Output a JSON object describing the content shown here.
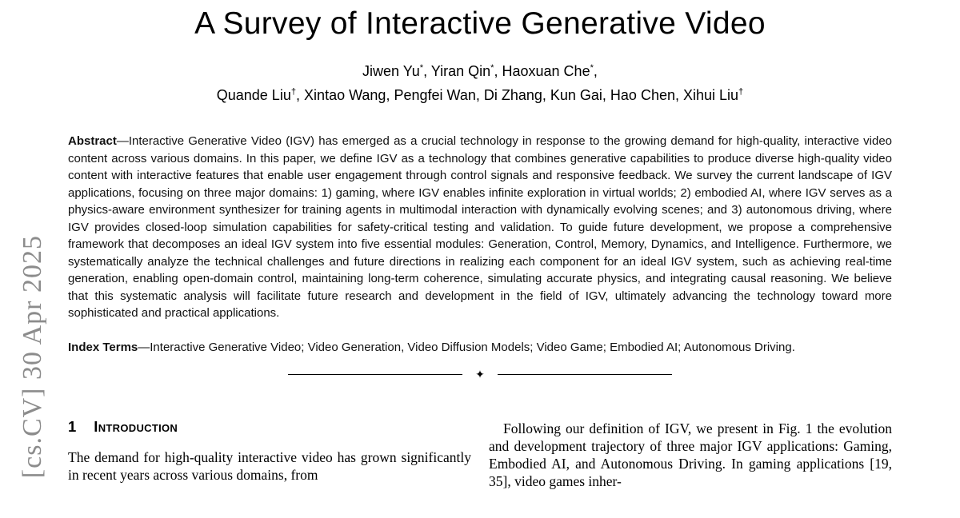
{
  "watermark": {
    "text": "[cs.CV] 30 Apr 2025"
  },
  "paper": {
    "title": "A Survey of Interactive Generative Video",
    "authors_line1": [
      {
        "t": "Jiwen Yu"
      },
      {
        "t": "*",
        "sup": true
      },
      {
        "t": ", Yiran Qin"
      },
      {
        "t": "*",
        "sup": true
      },
      {
        "t": ", Haoxuan Che"
      },
      {
        "t": "*",
        "sup": true
      },
      {
        "t": ","
      }
    ],
    "authors_line2": [
      {
        "t": "Quande Liu"
      },
      {
        "t": "†",
        "sup": true
      },
      {
        "t": ", Xintao Wang, Pengfei Wan, Di Zhang, Kun Gai, Hao Chen, Xihui Liu"
      },
      {
        "t": "†",
        "sup": true
      }
    ],
    "abstract_label": "Abstract",
    "abstract_text": "—Interactive Generative Video (IGV) has emerged as a crucial technology in response to the growing demand for high-quality, interactive video content across various domains. In this paper, we define IGV as a technology that combines generative capabilities to produce diverse high-quality video content with interactive features that enable user engagement through control signals and responsive feedback. We survey the current landscape of IGV applications, focusing on three major domains: 1) gaming, where IGV enables infinite exploration in virtual worlds; 2) embodied AI, where IGV serves as a physics-aware environment synthesizer for training agents in multimodal interaction with dynamically evolving scenes; and 3) autonomous driving, where IGV provides closed-loop simulation capabilities for safety-critical testing and validation. To guide future development, we propose a comprehensive framework that decomposes an ideal IGV system into five essential modules: Generation, Control, Memory, Dynamics, and Intelligence. Furthermore, we systematically analyze the technical challenges and future directions in realizing each component for an ideal IGV system, such as achieving real-time generation, enabling open-domain control, maintaining long-term coherence, simulating accurate physics, and integrating causal reasoning. We believe that this systematic analysis will facilitate future research and development in the field of IGV, ultimately advancing the technology toward more sophisticated and practical applications.",
    "index_terms_label": "Index Terms",
    "index_terms_text": "—Interactive Generative Video; Video Generation, Video Diffusion Models; Video Game; Embodied AI; Autonomous Driving.",
    "separator_glyph": "✦",
    "section1": {
      "number": "1",
      "title": "Introduction"
    },
    "left_column_text": "The demand for high-quality interactive video has grown significantly in recent years across various domains, from",
    "right_column_text": "Following our definition of IGV, we present in Fig. 1 the evolution and development trajectory of three major IGV applications: Gaming, Embodied AI, and Autonomous Driving. In gaming applications [19, 35], video games inher-"
  }
}
